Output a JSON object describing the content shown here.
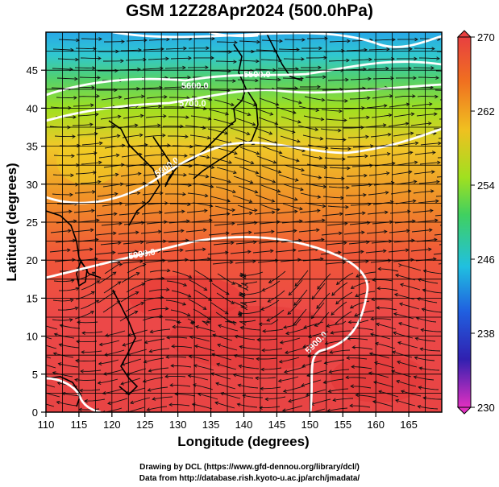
{
  "title": "GSM 12Z28Apr2024 (500.0hPa)",
  "chart_data": {
    "type": "heatmap",
    "xlabel": "Longitude (degrees)",
    "ylabel": "Latitude  (degrees)",
    "xlim": [
      110,
      170
    ],
    "ylim": [
      0,
      50
    ],
    "xticks": [
      "110",
      "115",
      "120",
      "125",
      "130",
      "135",
      "140",
      "145",
      "150",
      "155",
      "160",
      "165"
    ],
    "yticks": [
      "0",
      "5",
      "10",
      "15",
      "20",
      "25",
      "30",
      "35",
      "40",
      "45"
    ],
    "colorbar": {
      "min": 230,
      "max": 270,
      "ticks": [
        "270",
        "262",
        "254",
        "246",
        "238",
        "230"
      ],
      "colors": [
        "#e030c0",
        "#3020b0",
        "#2060e0",
        "#20c0e0",
        "#40d060",
        "#a0e020",
        "#f0c020",
        "#f07020",
        "#e84040"
      ]
    },
    "contours": [
      {
        "label": "5500.0",
        "approx_lat": 44
      },
      {
        "label": "5600.0",
        "approx_lat": 40
      },
      {
        "label": "5700.0",
        "approx_lat": 37
      },
      {
        "label": "5800.0",
        "approx_lat": 33
      },
      {
        "label": "5900.0",
        "approx_lat": 22
      },
      {
        "label": "5900.0",
        "approx_lat": 8
      }
    ],
    "grid": true
  },
  "credits": {
    "line1": "Drawing by DCL (https://www.gfd-dennou.org/library/dcl/)",
    "line2": "Data from http://database.rish.kyoto-u.ac.jp/arch/jmadata/"
  }
}
